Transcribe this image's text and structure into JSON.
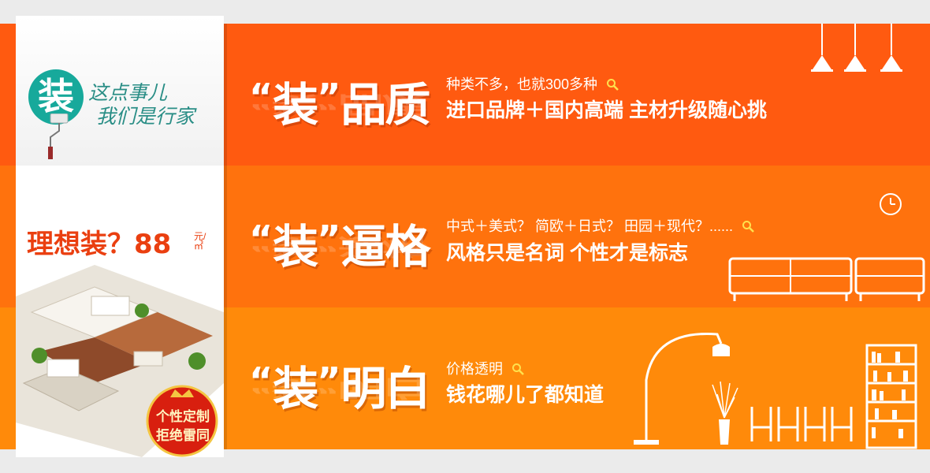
{
  "left_panel": {
    "logo_char": "装",
    "slogan_line1": "这点事儿",
    "slogan_line2": "我们是行家",
    "promo_title": "理想装？88",
    "promo_unit": "元/㎡",
    "seal_line1": "个性定制",
    "seal_line2": "拒绝雷同"
  },
  "rows": [
    {
      "heading_quote_open": "“",
      "heading_char": "装",
      "heading_quote_close": "”",
      "heading_word": "品质",
      "small_text": "种类不多，也就300多种",
      "big_text": "进口品牌＋国内高端  主材升级随心挑",
      "color": "#ff5a10"
    },
    {
      "heading_quote_open": "“",
      "heading_char": "装",
      "heading_quote_close": "”",
      "heading_word": "逼格",
      "small_text": "中式＋美式？ 简欧＋日式？ 田园＋现代？......",
      "big_text": "风格只是名词  个性才是标志",
      "color": "#ff720d"
    },
    {
      "heading_quote_open": "“",
      "heading_char": "装",
      "heading_quote_close": "”",
      "heading_word": "明白",
      "small_text": "价格透明",
      "big_text": "钱花哪儿了都知道",
      "color": "#ff8a0a"
    }
  ],
  "icons": {
    "search": "search-icon",
    "lamps": "pendant-lamp-icon",
    "clock": "clock-icon",
    "sofa": "sofa-icon",
    "floor_lamp": "floor-lamp-icon",
    "chair": "chair-icon",
    "bookshelf": "bookshelf-icon",
    "vase": "vase-icon"
  }
}
